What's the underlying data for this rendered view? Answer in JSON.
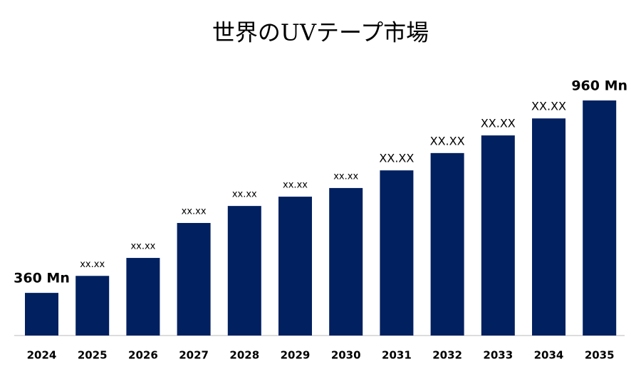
{
  "chart_data": {
    "type": "bar",
    "title": "世界のUVテープ市場",
    "categories": [
      "2024",
      "2025",
      "2026",
      "2027",
      "2028",
      "2029",
      "2030",
      "2031",
      "2032",
      "2033",
      "2034",
      "2035"
    ],
    "values": [
      360,
      413,
      469,
      578,
      631,
      660,
      687,
      742,
      796,
      851,
      904,
      960
    ],
    "value_labels": [
      "360 Mn",
      "xx.xx",
      "xx.xx",
      "xx.xx",
      "xx.xx",
      "xx.xx",
      "xx.xx",
      "XX.XX",
      "XX.XX",
      "XX.XX",
      "XX.XX",
      "960 Mn"
    ],
    "color": "#002060",
    "ylim": [
      227,
      1100
    ]
  }
}
